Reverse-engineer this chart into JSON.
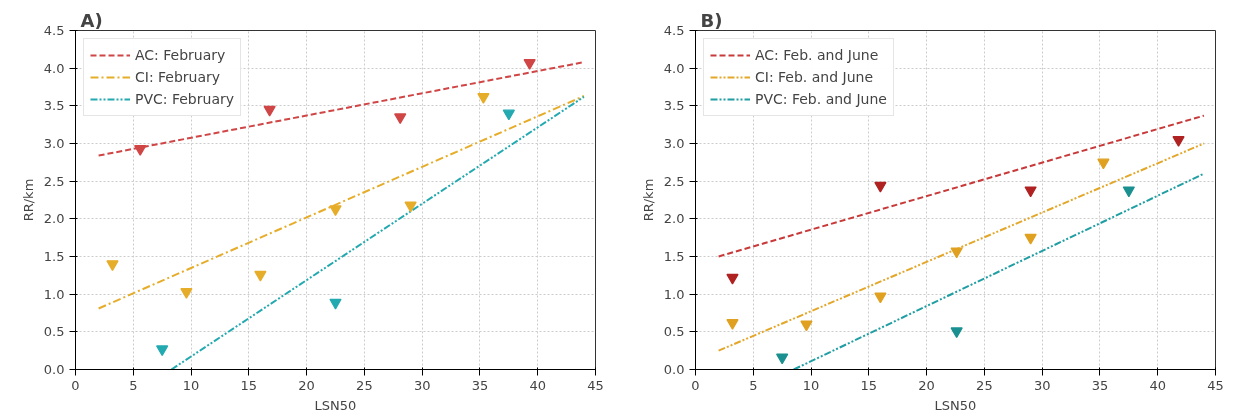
{
  "chart_data": [
    {
      "type": "scatter",
      "title": "A)",
      "xlabel": "LSN50",
      "ylabel": "RR/km",
      "xlim": [
        0,
        45
      ],
      "ylim": [
        0,
        4.5
      ],
      "xticks": [
        0,
        5,
        10,
        15,
        20,
        25,
        30,
        35,
        40,
        45
      ],
      "yticks": [
        {
          "value": 0,
          "label": "0.0"
        },
        0.5,
        {
          "value": 1,
          "label": "1.0"
        },
        1.5,
        {
          "value": 2,
          "label": "2.0"
        },
        2.5,
        {
          "value": 3,
          "label": "3.0"
        },
        3.5,
        {
          "value": 4,
          "label": "4.0"
        },
        4.5
      ],
      "grid": true,
      "legend": "top left",
      "series": [
        {
          "type": "line",
          "name": "AC: February",
          "color": "#d04545",
          "line_style": "dashed",
          "marker": "none",
          "x": [
            2,
            44
          ],
          "values": [
            2.84,
            4.08
          ]
        },
        {
          "type": "line",
          "name": "CI: February",
          "color": "#e6ad2a",
          "line_style": "dashdot",
          "marker": "none",
          "x": [
            2,
            44
          ],
          "values": [
            0.81,
            3.63
          ]
        },
        {
          "type": "line",
          "name": "PVC: February",
          "color": "#23a9b0",
          "line_style": "dashdotdot",
          "marker": "none",
          "x": [
            8.3,
            44
          ],
          "values": [
            0,
            3.62
          ]
        },
        {
          "color": "#d04545",
          "marker": "triangle",
          "x": [
            5.6,
            16.8,
            28.1,
            39.3
          ],
          "values": [
            2.93,
            3.45,
            3.35,
            4.07
          ]
        },
        {
          "color": "#e6ad2a",
          "marker": "triangle",
          "x": [
            3.2,
            9.6,
            16,
            22.5,
            29,
            35.3
          ],
          "values": [
            1.4,
            1.03,
            1.26,
            2.13,
            2.18,
            3.62
          ]
        },
        {
          "color": "#23a9b0",
          "marker": "triangle",
          "x": [
            7.5,
            22.5,
            37.5
          ],
          "values": [
            0.27,
            0.89,
            3.4
          ]
        }
      ]
    },
    {
      "type": "scatter",
      "title": "B)",
      "xlabel": "LSN50",
      "ylabel": "RR/km",
      "xlim": [
        0,
        45
      ],
      "ylim": [
        0,
        4.5
      ],
      "xticks": [
        0,
        5,
        10,
        15,
        20,
        25,
        30,
        35,
        40,
        45
      ],
      "yticks": [
        {
          "value": 0,
          "label": "0.0"
        },
        0.5,
        {
          "value": 1,
          "label": "1.0"
        },
        1.5,
        {
          "value": 2,
          "label": "2.0"
        },
        2.5,
        {
          "value": 3,
          "label": "3.0"
        },
        3.5,
        {
          "value": 4,
          "label": "4.0"
        },
        4.5
      ],
      "grid": true,
      "legend": "top left",
      "series": [
        {
          "type": "line",
          "name": "AC: Feb. and June",
          "color": "#c83a3a",
          "line_style": "dashed",
          "marker": "none",
          "x": [
            2,
            44
          ],
          "values": [
            1.5,
            3.37
          ]
        },
        {
          "type": "line",
          "name": "CI: Feb. and June",
          "color": "#e3a72a",
          "line_style": "dashdotdot",
          "marker": "none",
          "x": [
            2,
            44
          ],
          "values": [
            0.25,
            3.0
          ]
        },
        {
          "type": "line",
          "name": "PVC: Feb. and June",
          "color": "#1f9ea3",
          "line_style": "dashdotdot",
          "marker": "none",
          "x": [
            8.5,
            44
          ],
          "values": [
            0,
            2.6
          ]
        },
        {
          "color": "#b02222",
          "marker": "triangle",
          "x": [
            3.2,
            16,
            29,
            41.8
          ],
          "values": [
            1.22,
            2.44,
            2.38,
            3.05
          ]
        },
        {
          "color": "#e0a020",
          "marker": "triangle",
          "x": [
            3.2,
            9.6,
            16,
            22.6,
            29,
            35.3
          ],
          "values": [
            0.62,
            0.6,
            0.97,
            1.57,
            1.75,
            2.75
          ]
        },
        {
          "color": "#1a9090",
          "marker": "triangle",
          "x": [
            7.5,
            22.6,
            37.5
          ],
          "values": [
            0.16,
            0.51,
            2.38
          ]
        }
      ]
    }
  ]
}
